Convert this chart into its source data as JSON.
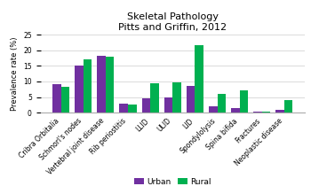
{
  "title": "Skeletal Pathology\nPitts and Griffin, 2012",
  "ylabel": "Prevalence rate (%)",
  "categories": [
    "Cribra Orbitalia",
    "Schmorl's nodes",
    "Vertebral joint disease",
    "Rib periostitis",
    "LLID",
    "ULID",
    "LID",
    "Spondylolysis",
    "Spina bifida",
    "Fractures",
    "Neoplastic disease"
  ],
  "urban": [
    9.2,
    15.0,
    18.2,
    3.0,
    4.5,
    5.0,
    8.5,
    2.0,
    1.3,
    0.2,
    1.0
  ],
  "rural": [
    8.3,
    17.0,
    18.0,
    2.5,
    9.4,
    9.7,
    21.8,
    6.0,
    7.0,
    0.3,
    4.0
  ],
  "urban_color": "#7030A0",
  "rural_color": "#00B050",
  "ylim": [
    0,
    25
  ],
  "yticks": [
    0,
    5,
    10,
    15,
    20,
    25
  ],
  "background_color": "#ffffff",
  "title_fontsize": 8,
  "axis_fontsize": 6,
  "tick_fontsize": 5.5,
  "legend_fontsize": 6.5
}
